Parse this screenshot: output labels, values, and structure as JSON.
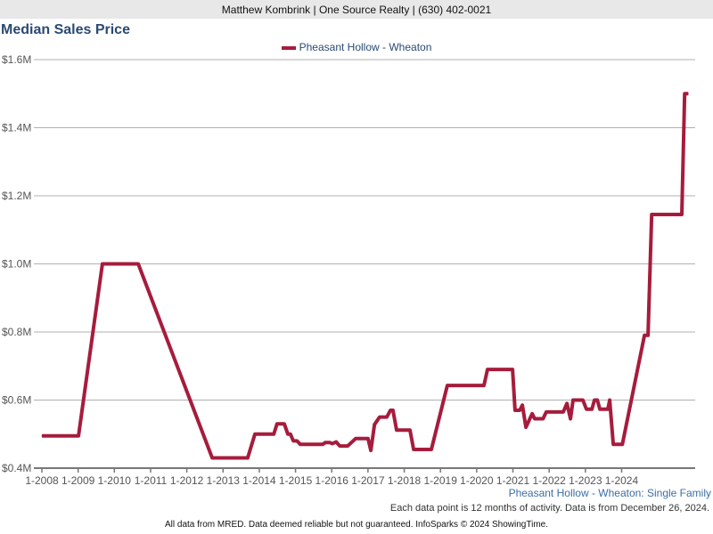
{
  "header": {
    "text": "Matthew Kombrink | One Source Realty | (630) 402-0021"
  },
  "title": "Median Sales Price",
  "legend": {
    "label": "Pheasant Hollow - Wheaton"
  },
  "footer": {
    "series_note": "Pheasant Hollow - Wheaton: Single Family",
    "data_note": "Each data point is 12 months of activity. Data is from December 26, 2024.",
    "disclaimer": "All data from MRED. Data deemed reliable but not guaranteed. InfoSparks © 2024 ShowingTime."
  },
  "colors": {
    "line": "#a61c3c",
    "title": "#2a4a72"
  },
  "chart_data": {
    "type": "line",
    "title": "Median Sales Price",
    "xlabel": "",
    "ylabel": "",
    "ylim": [
      400,
      1600
    ],
    "xlim": [
      2008,
      2026.03
    ],
    "yticks": [
      {
        "v": 400,
        "label": "$0.4M"
      },
      {
        "v": 600,
        "label": "$0.6M"
      },
      {
        "v": 800,
        "label": "$0.8M"
      },
      {
        "v": 1000,
        "label": "$1.0M"
      },
      {
        "v": 1200,
        "label": "$1.2M"
      },
      {
        "v": 1400,
        "label": "$1.4M"
      },
      {
        "v": 1600,
        "label": "$1.6M"
      }
    ],
    "xticks": [
      {
        "v": 2008,
        "label": "1-2008"
      },
      {
        "v": 2009,
        "label": "1-2009"
      },
      {
        "v": 2010,
        "label": "1-2010"
      },
      {
        "v": 2011,
        "label": "1-2011"
      },
      {
        "v": 2012,
        "label": "1-2012"
      },
      {
        "v": 2013,
        "label": "1-2013"
      },
      {
        "v": 2014,
        "label": "1-2014"
      },
      {
        "v": 2015,
        "label": "1-2015"
      },
      {
        "v": 2016,
        "label": "1-2016"
      },
      {
        "v": 2017,
        "label": "1-2017"
      },
      {
        "v": 2018,
        "label": "1-2018"
      },
      {
        "v": 2019,
        "label": "1-2019"
      },
      {
        "v": 2020,
        "label": "1-2020"
      },
      {
        "v": 2021,
        "label": "1-2021"
      },
      {
        "v": 2022,
        "label": "1-2022"
      },
      {
        "v": 2023,
        "label": "1-2023"
      },
      {
        "v": 2024,
        "label": "1-2024"
      }
    ],
    "series": [
      {
        "name": "Pheasant Hollow - Wheaton",
        "unit": "$K",
        "x": [
          2008,
          2009.01,
          2009.67,
          2010.66,
          2012.7,
          2013.68,
          2013.88,
          2014.4,
          2014.49,
          2014.69,
          2014.79,
          2014.86,
          2014.94,
          2015.04,
          2015.13,
          2015.75,
          2015.82,
          2015.95,
          2016.02,
          2016.12,
          2016.22,
          2016.44,
          2016.59,
          2016.66,
          2017.0,
          2017.08,
          2017.18,
          2017.32,
          2017.52,
          2017.62,
          2017.69,
          2017.79,
          2018.16,
          2018.26,
          2018.75,
          2019.19,
          2020.2,
          2020.3,
          2020.99,
          2021.06,
          2021.19,
          2021.26,
          2021.36,
          2021.53,
          2021.6,
          2021.83,
          2021.92,
          2022.39,
          2022.49,
          2022.59,
          2022.66,
          2022.93,
          2023.03,
          2023.18,
          2023.25,
          2023.33,
          2023.4,
          2023.62,
          2023.67,
          2023.77,
          2024.02,
          2024.63,
          2024.73,
          2024.83,
          2025.66,
          2025.74,
          2025.84
        ],
        "y": [
          495,
          495,
          1000,
          1000,
          430,
          430,
          500,
          500,
          530,
          530,
          500,
          500,
          480,
          480,
          470,
          470,
          475,
          475,
          472,
          477,
          465,
          465,
          480,
          487,
          487,
          452,
          528,
          550,
          550,
          570,
          570,
          512,
          512,
          455,
          455,
          643,
          643,
          690,
          690,
          570,
          570,
          585,
          520,
          560,
          545,
          545,
          565,
          565,
          590,
          545,
          600,
          600,
          573,
          573,
          600,
          600,
          573,
          573,
          600,
          470,
          470,
          790,
          790,
          1145,
          1145,
          1500,
          1500
        ]
      }
    ]
  }
}
